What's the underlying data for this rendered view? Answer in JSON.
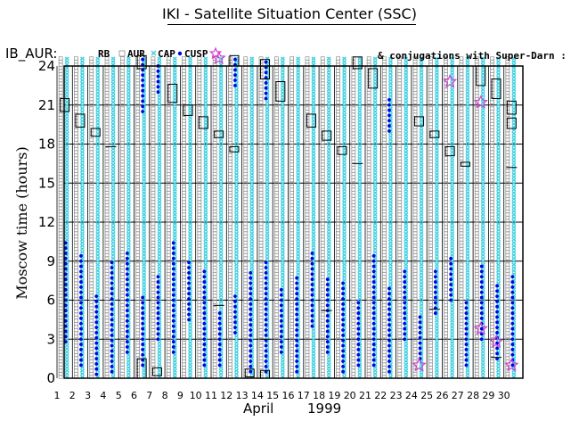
{
  "page_title": "IKI - Satellite Situation Center (SSC)",
  "chart_data": {
    "type": "scatter",
    "title": "IKI - Satellite Situation Center (SSC)",
    "panel_label": "IB_AUR:",
    "legend": [
      {
        "label": "RB",
        "marker": "square",
        "color": "#000000"
      },
      {
        "label": "AUR",
        "marker": "small-square",
        "color": "#909090"
      },
      {
        "label": "CAP",
        "marker": "x",
        "color": "#3fcfe0"
      },
      {
        "label": "CUSP",
        "marker": "dot",
        "color": "#0000e0"
      },
      {
        "label": "",
        "marker": "star",
        "color": "#d040d0"
      }
    ],
    "note": "& conjugations with Super-Darn :",
    "ylabel": "Moscow time (hours)",
    "xlabel_month": "April",
    "xlabel_year": "1999",
    "ylim": [
      0,
      24
    ],
    "yticks": [
      0,
      3,
      6,
      9,
      12,
      15,
      18,
      21,
      24
    ],
    "xticks": [
      1,
      2,
      3,
      4,
      5,
      6,
      7,
      8,
      9,
      10,
      11,
      12,
      13,
      14,
      15,
      16,
      17,
      18,
      19,
      20,
      21,
      22,
      23,
      24,
      25,
      26,
      27,
      28,
      29,
      30
    ],
    "day_columns": [
      1,
      2,
      3,
      4,
      5,
      6,
      7,
      8,
      9,
      10,
      11,
      12,
      13,
      14,
      15,
      16,
      17,
      18,
      19,
      20,
      21,
      22,
      23,
      24,
      25,
      26,
      27,
      28,
      29,
      30
    ],
    "cusp_intervals": [
      {
        "day": 1,
        "from": 2.8,
        "to": 10.5
      },
      {
        "day": 2,
        "from": 1.0,
        "to": 9.5
      },
      {
        "day": 3,
        "from": 0.3,
        "to": 6.5
      },
      {
        "day": 4,
        "from": 0.5,
        "to": 9.0
      },
      {
        "day": 5,
        "from": 2.0,
        "to": 10.0
      },
      {
        "day": 6,
        "from": 1.0,
        "to": 6.5
      },
      {
        "day": 6,
        "from": 20.5,
        "to": 24.5
      },
      {
        "day": 7,
        "from": 3.0,
        "to": 8.0
      },
      {
        "day": 7,
        "from": 22.0,
        "to": 24.0
      },
      {
        "day": 8,
        "from": 2.0,
        "to": 10.5
      },
      {
        "day": 9,
        "from": 4.5,
        "to": 9.0
      },
      {
        "day": 10,
        "from": 1.0,
        "to": 8.5
      },
      {
        "day": 11,
        "from": 1.0,
        "to": 5.0
      },
      {
        "day": 12,
        "from": 3.5,
        "to": 6.5
      },
      {
        "day": 12,
        "from": 22.5,
        "to": 24.5
      },
      {
        "day": 13,
        "from": 0.5,
        "to": 8.5
      },
      {
        "day": 14,
        "from": 0.5,
        "to": 9.0
      },
      {
        "day": 14,
        "from": 21.5,
        "to": 24.5
      },
      {
        "day": 15,
        "from": 2.0,
        "to": 7.0
      },
      {
        "day": 16,
        "from": 0.5,
        "to": 8.0
      },
      {
        "day": 17,
        "from": 4.0,
        "to": 10.0
      },
      {
        "day": 18,
        "from": 2.0,
        "to": 8.0
      },
      {
        "day": 19,
        "from": 0.5,
        "to": 7.5
      },
      {
        "day": 20,
        "from": 1.0,
        "to": 6.0
      },
      {
        "day": 21,
        "from": 1.0,
        "to": 9.5
      },
      {
        "day": 22,
        "from": 0.5,
        "to": 7.0
      },
      {
        "day": 22,
        "from": 19.0,
        "to": 21.5
      },
      {
        "day": 23,
        "from": 3.0,
        "to": 8.5
      },
      {
        "day": 24,
        "from": 1.5,
        "to": 5.0
      },
      {
        "day": 25,
        "from": 5.0,
        "to": 8.5
      },
      {
        "day": 26,
        "from": 6.0,
        "to": 9.5
      },
      {
        "day": 27,
        "from": 1.0,
        "to": 6.0
      },
      {
        "day": 28,
        "from": 3.0,
        "to": 9.0
      },
      {
        "day": 29,
        "from": 1.5,
        "to": 7.5
      },
      {
        "day": 30,
        "from": 1.0,
        "to": 8.0
      }
    ],
    "rb_boxes": [
      {
        "day": 1,
        "from": 20.5,
        "to": 21.5
      },
      {
        "day": 2,
        "from": 19.3,
        "to": 20.3
      },
      {
        "day": 3,
        "from": 18.6,
        "to": 19.2
      },
      {
        "day": 6,
        "from": 0.0,
        "to": 1.5
      },
      {
        "day": 6,
        "from": 23.8,
        "to": 24.8
      },
      {
        "day": 7,
        "from": 0.2,
        "to": 0.8
      },
      {
        "day": 8,
        "from": 21.2,
        "to": 22.6
      },
      {
        "day": 9,
        "from": 20.2,
        "to": 21.0
      },
      {
        "day": 10,
        "from": 19.2,
        "to": 20.1
      },
      {
        "day": 11,
        "from": 18.5,
        "to": 19.0
      },
      {
        "day": 12,
        "from": 17.4,
        "to": 17.8
      },
      {
        "day": 12,
        "from": 24.0,
        "to": 24.8
      },
      {
        "day": 13,
        "from": 0.1,
        "to": 0.7
      },
      {
        "day": 14,
        "from": 0.0,
        "to": 0.6
      },
      {
        "day": 14,
        "from": 23.0,
        "to": 24.5
      },
      {
        "day": 15,
        "from": 21.3,
        "to": 22.8
      },
      {
        "day": 17,
        "from": 19.3,
        "to": 20.3
      },
      {
        "day": 18,
        "from": 18.3,
        "to": 19.0
      },
      {
        "day": 19,
        "from": 17.2,
        "to": 17.8
      },
      {
        "day": 20,
        "from": 23.8,
        "to": 24.7
      },
      {
        "day": 21,
        "from": 22.3,
        "to": 23.8
      },
      {
        "day": 24,
        "from": 19.4,
        "to": 20.1
      },
      {
        "day": 25,
        "from": 18.5,
        "to": 19.0
      },
      {
        "day": 26,
        "from": 17.1,
        "to": 17.8
      },
      {
        "day": 27,
        "from": 16.3,
        "to": 16.6
      },
      {
        "day": 28,
        "from": 22.5,
        "to": 24.0
      },
      {
        "day": 29,
        "from": 21.5,
        "to": 23.0
      },
      {
        "day": 30,
        "from": 20.3,
        "to": 21.3
      },
      {
        "day": 30,
        "from": 19.2,
        "to": 20.0
      }
    ],
    "conjugation_stars": [
      {
        "day": 11,
        "value": 24.6
      },
      {
        "day": 24,
        "value": 1.0
      },
      {
        "day": 26,
        "value": 22.8
      },
      {
        "day": 28,
        "value": 21.2
      },
      {
        "day": 28,
        "value": 3.8
      },
      {
        "day": 29,
        "value": 2.8
      },
      {
        "day": 30,
        "value": 1.0
      }
    ],
    "horizontal_ticks": [
      {
        "day": 4,
        "value": 17.8
      },
      {
        "day": 11,
        "value": 5.6
      },
      {
        "day": 14,
        "value": 3.0
      },
      {
        "day": 18,
        "value": 5.2
      },
      {
        "day": 20,
        "value": 16.5
      },
      {
        "day": 25,
        "value": 5.3
      },
      {
        "day": 29,
        "value": 1.6
      },
      {
        "day": 30,
        "value": 16.2
      }
    ]
  }
}
